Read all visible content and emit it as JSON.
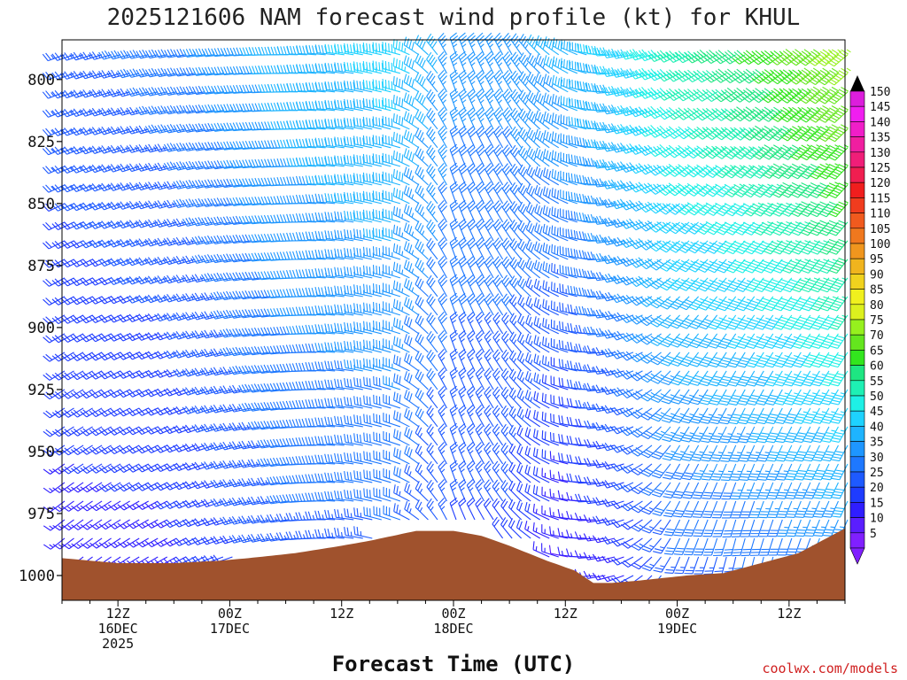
{
  "chart_data": {
    "type": "wind-barb-profile",
    "title": "2025121606 NAM forecast wind profile (kt) for KHUL",
    "xlabel": "Forecast Time (UTC)",
    "ylabel": "",
    "yticks": [
      "800",
      "825",
      "850",
      "875",
      "900",
      "925",
      "950",
      "975",
      "1000"
    ],
    "ylim": [
      1010,
      784
    ],
    "xticks": [
      {
        "hour": 6,
        "lines": [
          "12Z",
          "16DEC",
          "2025"
        ]
      },
      {
        "hour": 18,
        "lines": [
          "00Z",
          "17DEC"
        ]
      },
      {
        "hour": 30,
        "lines": [
          "12Z"
        ]
      },
      {
        "hour": 42,
        "lines": [
          "00Z",
          "18DEC"
        ]
      },
      {
        "hour": 54,
        "lines": [
          "12Z"
        ]
      },
      {
        "hour": 66,
        "lines": [
          "00Z",
          "19DEC"
        ]
      },
      {
        "hour": 78,
        "lines": [
          "12Z"
        ]
      }
    ],
    "xlim": [
      0,
      84
    ],
    "colorbar": {
      "unit": "kt",
      "levels": [
        5,
        10,
        15,
        20,
        25,
        30,
        35,
        40,
        45,
        50,
        55,
        60,
        65,
        70,
        75,
        80,
        85,
        90,
        95,
        100,
        105,
        110,
        115,
        120,
        125,
        130,
        135,
        140,
        145,
        150
      ],
      "colors": [
        "#8020ff",
        "#5a1eff",
        "#2f1eff",
        "#1e3cff",
        "#1e5aff",
        "#1e78ff",
        "#1e96ff",
        "#1eb4ff",
        "#1ed2ff",
        "#1ef0e6",
        "#1ef0b4",
        "#1ee682",
        "#32e61e",
        "#64e61e",
        "#96f01e",
        "#dcf01e",
        "#f0f01e",
        "#f0d21e",
        "#f0b41e",
        "#f0961e",
        "#f0781e",
        "#f05a1e",
        "#f03c1e",
        "#f01e1e",
        "#f01e50",
        "#f01e78",
        "#f01ea0",
        "#f01ec8",
        "#f01ef0",
        "#dc1edc"
      ]
    },
    "terrain_color": "#a0522d",
    "surface_pressure": [
      [
        0,
        993
      ],
      [
        6,
        995
      ],
      [
        12,
        995
      ],
      [
        17,
        994
      ],
      [
        20,
        993
      ],
      [
        25,
        991
      ],
      [
        30,
        988
      ],
      [
        33,
        986
      ],
      [
        38,
        982
      ],
      [
        42,
        982
      ],
      [
        45,
        984
      ],
      [
        48,
        988
      ],
      [
        52,
        994
      ],
      [
        55,
        998
      ],
      [
        57,
        1003
      ],
      [
        59,
        1003
      ],
      [
        62,
        1002
      ],
      [
        67,
        1000
      ],
      [
        71,
        999
      ],
      [
        75,
        995
      ],
      [
        79,
        991
      ],
      [
        84,
        981
      ]
    ],
    "wind_regimes": {
      "description_units": "direction deg (from), speed kt",
      "stations": [
        0,
        12,
        24,
        36,
        42,
        48,
        54,
        60,
        66,
        72,
        84
      ],
      "upper": [
        {
          "hour": 0,
          "dir": 250,
          "spd": 25
        },
        {
          "hour": 12,
          "dir": 260,
          "spd": 30
        },
        {
          "hour": 24,
          "dir": 270,
          "spd": 40
        },
        {
          "hour": 36,
          "dir": 285,
          "spd": 45
        },
        {
          "hour": 42,
          "dir": 340,
          "spd": 35
        },
        {
          "hour": 48,
          "dir": 330,
          "spd": 35
        },
        {
          "hour": 54,
          "dir": 300,
          "spd": 40
        },
        {
          "hour": 60,
          "dir": 260,
          "spd": 45
        },
        {
          "hour": 66,
          "dir": 245,
          "spd": 55
        },
        {
          "hour": 72,
          "dir": 240,
          "spd": 60
        },
        {
          "hour": 84,
          "dir": 230,
          "spd": 75
        }
      ],
      "lower": [
        {
          "hour": 0,
          "dir": 230,
          "spd": 15
        },
        {
          "hour": 12,
          "dir": 240,
          "spd": 15
        },
        {
          "hour": 24,
          "dir": 260,
          "spd": 25
        },
        {
          "hour": 36,
          "dir": 290,
          "spd": 25
        },
        {
          "hour": 42,
          "dir": 340,
          "spd": 20
        },
        {
          "hour": 48,
          "dir": 320,
          "spd": 20
        },
        {
          "hour": 54,
          "dir": 280,
          "spd": 10
        },
        {
          "hour": 60,
          "dir": 250,
          "spd": 15
        },
        {
          "hour": 66,
          "dir": 200,
          "spd": 25
        },
        {
          "hour": 72,
          "dir": 190,
          "spd": 25
        },
        {
          "hour": 84,
          "dir": 200,
          "spd": 30
        }
      ]
    }
  },
  "footer": {
    "credit": "coolwx.com/models"
  }
}
